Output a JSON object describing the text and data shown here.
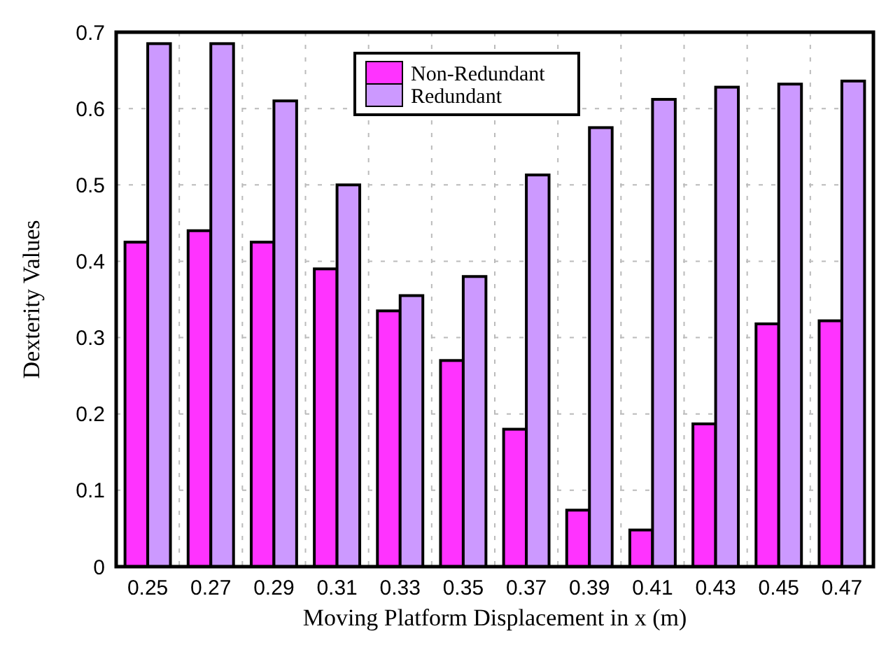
{
  "chart_data": {
    "type": "bar",
    "xlabel": "Moving Platform Displacement in x (m)",
    "ylabel": "Dexterity Values",
    "categories": [
      "0.25",
      "0.27",
      "0.29",
      "0.31",
      "0.33",
      "0.35",
      "0.37",
      "0.39",
      "0.41",
      "0.43",
      "0.45",
      "0.47"
    ],
    "series": [
      {
        "name": "Non-Redundant",
        "color": "#ff33ff",
        "values": [
          0.425,
          0.44,
          0.425,
          0.39,
          0.335,
          0.27,
          0.18,
          0.074,
          0.048,
          0.187,
          0.318,
          0.322
        ]
      },
      {
        "name": "Redundant",
        "color": "#cc99ff",
        "values": [
          0.685,
          0.685,
          0.61,
          0.5,
          0.355,
          0.38,
          0.513,
          0.575,
          0.612,
          0.628,
          0.632,
          0.636
        ]
      }
    ],
    "ylim": [
      0,
      0.7
    ],
    "yticks": [
      0,
      0.1,
      0.2,
      0.3,
      0.4,
      0.5,
      0.6,
      0.7
    ],
    "grid": true,
    "legend": "top"
  }
}
